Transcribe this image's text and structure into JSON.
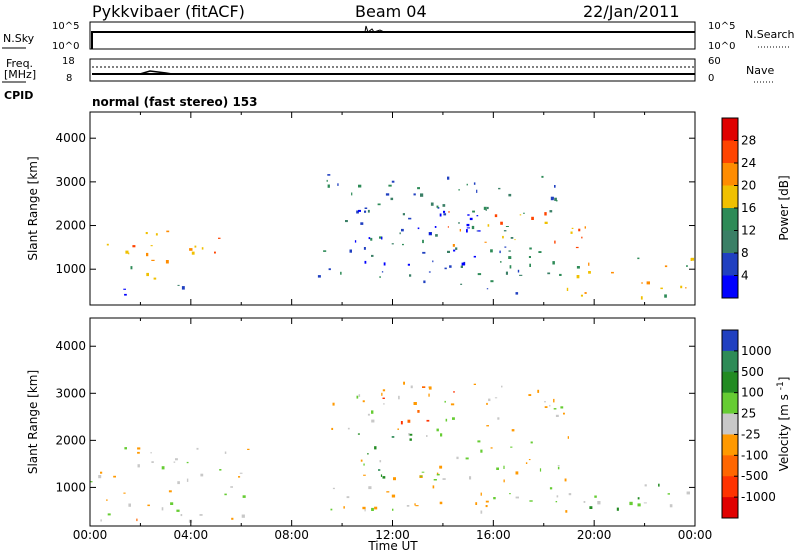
{
  "header": {
    "station": "Pykkvibaer (fitACF)",
    "beam": "Beam 04",
    "date": "22/Jan/2011"
  },
  "top_panels": {
    "nsky_label": "N.Sky",
    "nsky_ticks": [
      "10^5",
      "10^0"
    ],
    "nsearch_label": "N.Search",
    "nsearch_ticks": [
      "10^5",
      "10^0"
    ],
    "freq_label_1": "Freq.",
    "freq_label_2": "[MHz]",
    "freq_ticks": [
      "18",
      "8"
    ],
    "nave_label": "Nave",
    "nave_ticks": [
      "60",
      "0"
    ],
    "cpid_label": "CPID",
    "cpid_text": "normal (fast stereo) 153"
  },
  "chart_data": [
    {
      "type": "heatmap",
      "title": "Power",
      "ylabel": "Slant Range [km]",
      "xlabel": "Time UT",
      "ylim": [
        180,
        4600
      ],
      "yticks": [
        1000,
        2000,
        3000,
        4000
      ],
      "xticks": [
        "00:00",
        "04:00",
        "08:00",
        "12:00",
        "16:00",
        "20:00",
        "00:00"
      ],
      "colorbar": {
        "label": "Power [dB]",
        "ticks": [
          "28",
          "24",
          "20",
          "16",
          "12",
          "8",
          "4"
        ],
        "colors": [
          "#e00000",
          "#ff4400",
          "#ff8c00",
          "#f0c000",
          "#2e8b57",
          "#3a7f66",
          "#2040c0",
          "#0000ff"
        ]
      },
      "regions": [
        {
          "t0": 0.0,
          "t1": 6.0,
          "r0": 1300,
          "r1": 1900,
          "level": 2,
          "note": "band"
        },
        {
          "t0": 0.3,
          "t1": 2.2,
          "r0": 300,
          "r1": 600,
          "level": 7
        },
        {
          "t0": 1.0,
          "t1": 3.5,
          "r0": 800,
          "r1": 1400,
          "level": 3
        },
        {
          "t0": 3.0,
          "t1": 5.0,
          "r0": 400,
          "r1": 700,
          "level": 5
        },
        {
          "t0": 9.0,
          "t1": 18.5,
          "r0": 600,
          "r1": 3200,
          "level": 5
        },
        {
          "t0": 10.5,
          "t1": 15.5,
          "r0": 1000,
          "r1": 2400,
          "level": 7
        },
        {
          "t0": 14.0,
          "t1": 20.0,
          "r0": 1500,
          "r1": 2400,
          "level": 2
        },
        {
          "t0": 18.5,
          "t1": 24.0,
          "r0": 300,
          "r1": 1300,
          "level": 3
        },
        {
          "t0": 15.0,
          "t1": 17.0,
          "r0": 450,
          "r1": 700,
          "level": 6
        }
      ]
    },
    {
      "type": "heatmap",
      "title": "Velocity",
      "ylabel": "Slant Range [km]",
      "xlabel": "Time UT",
      "ylim": [
        180,
        4600
      ],
      "yticks": [
        1000,
        2000,
        3000,
        4000
      ],
      "xticks": [
        "00:00",
        "04:00",
        "08:00",
        "12:00",
        "16:00",
        "20:00",
        "00:00"
      ],
      "colorbar": {
        "label": "Velocity [m s^-1]",
        "unit_main": "Velocity",
        "unit_bracket": "[m s",
        "unit_sup": "-1",
        "ticks": [
          "1000",
          "500",
          "100",
          "25",
          "-25",
          "-100",
          "-500",
          "-1000"
        ],
        "colors": [
          "#2040c0",
          "#2e8b57",
          "#228b22",
          "#66cc33",
          "#c8c8c8",
          "#ff9900",
          "#ff6600",
          "#ff3300",
          "#e00000"
        ]
      },
      "regions": [
        {
          "t0": 0.0,
          "t1": 6.5,
          "r0": 300,
          "r1": 1900,
          "level": 4
        },
        {
          "t0": 0.3,
          "t1": 2.3,
          "r0": 300,
          "r1": 600,
          "level": 5
        },
        {
          "t0": 9.5,
          "t1": 19.0,
          "r0": 500,
          "r1": 3300,
          "level": 4
        },
        {
          "t0": 11.5,
          "t1": 14.5,
          "r0": 2300,
          "r1": 3200,
          "level": 6
        },
        {
          "t0": 10.5,
          "t1": 13.5,
          "r0": 1200,
          "r1": 2200,
          "level": 2
        },
        {
          "t0": 18.5,
          "t1": 24.0,
          "r0": 500,
          "r1": 1200,
          "level": 3
        }
      ]
    }
  ],
  "xaxis": {
    "ticks": [
      "00:00",
      "04:00",
      "08:00",
      "12:00",
      "16:00",
      "20:00",
      "00:00"
    ],
    "label": "Time UT"
  }
}
